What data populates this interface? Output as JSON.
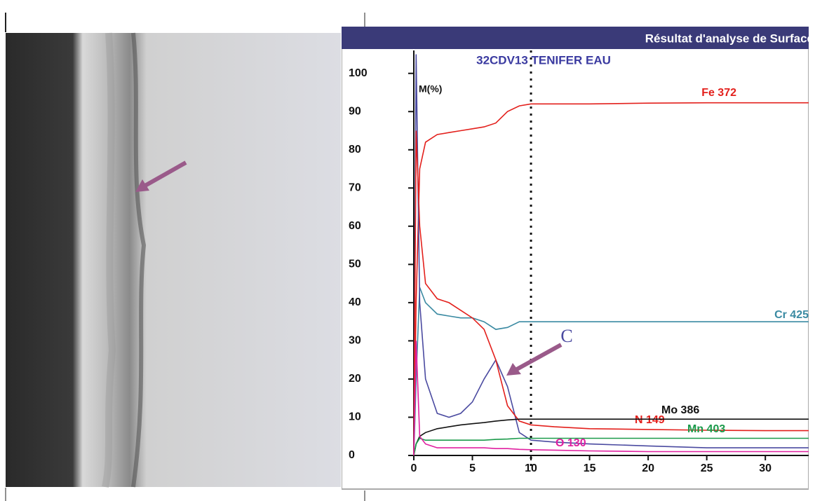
{
  "chart_data": {
    "type": "line",
    "title": "Résultat d'analyse de Surface",
    "subtitle": "32CDV13 TENIFER EAU",
    "y_label": "M(%)",
    "x": [
      0,
      0.2,
      0.5,
      1,
      2,
      3,
      4,
      5,
      6,
      7,
      8,
      9,
      10,
      12,
      15,
      20,
      25,
      30,
      33.7
    ],
    "series": [
      {
        "name": "Fe 372",
        "color": "#e3201c",
        "values": [
          0,
          40,
          75,
          82,
          84,
          84.5,
          85,
          85.5,
          86,
          87,
          90,
          91.5,
          92,
          92,
          92,
          92.2,
          92.3,
          92.3,
          92.3
        ]
      },
      {
        "name": "Cr 425",
        "color": "#3a8aa2",
        "values": [
          0,
          20,
          44,
          40,
          37,
          36.5,
          36,
          36,
          35,
          33,
          33.5,
          35,
          35,
          35,
          35,
          35,
          35,
          35,
          35
        ]
      },
      {
        "name": "C",
        "color": "#4a4aa0",
        "values": [
          0,
          105,
          40,
          20,
          11,
          10,
          11,
          14,
          20,
          25,
          18,
          6,
          4,
          3.5,
          3,
          2.5,
          2,
          2,
          2
        ]
      },
      {
        "name": "N 149",
        "color": "#e3201c",
        "values": [
          0,
          85,
          60,
          45,
          41,
          40,
          38,
          36,
          33,
          25,
          13,
          9,
          8,
          7.5,
          7,
          6.8,
          6.6,
          6.5,
          6.5
        ]
      },
      {
        "name": "Mo 386",
        "color": "#111111",
        "values": [
          0,
          3,
          5,
          6,
          7,
          7.5,
          8,
          8.3,
          8.6,
          9,
          9.3,
          9.5,
          9.5,
          9.5,
          9.5,
          9.5,
          9.5,
          9.5,
          9.5
        ]
      },
      {
        "name": "Mn 403",
        "color": "#1a9a4a",
        "values": [
          0,
          3,
          4.5,
          4,
          4,
          4,
          4,
          4,
          4,
          4.2,
          4.3,
          4.5,
          4.5,
          4.5,
          4.5,
          4.5,
          4.5,
          4.5,
          4.5
        ]
      },
      {
        "name": "O 130",
        "color": "#e020a0",
        "values": [
          0,
          30,
          5,
          3,
          2,
          2,
          2,
          2,
          2,
          1.8,
          1.8,
          1.6,
          1.5,
          1.4,
          1.2,
          1,
          1,
          1,
          1
        ]
      }
    ],
    "xlim": [
      0,
      33.7
    ],
    "ylim": [
      0,
      106
    ],
    "xticks": [
      0,
      5,
      10,
      15,
      20,
      25,
      30
    ],
    "yticks": [
      0,
      10,
      20,
      30,
      40,
      50,
      60,
      70,
      80,
      90,
      100
    ],
    "marker_x": 10
  }
}
